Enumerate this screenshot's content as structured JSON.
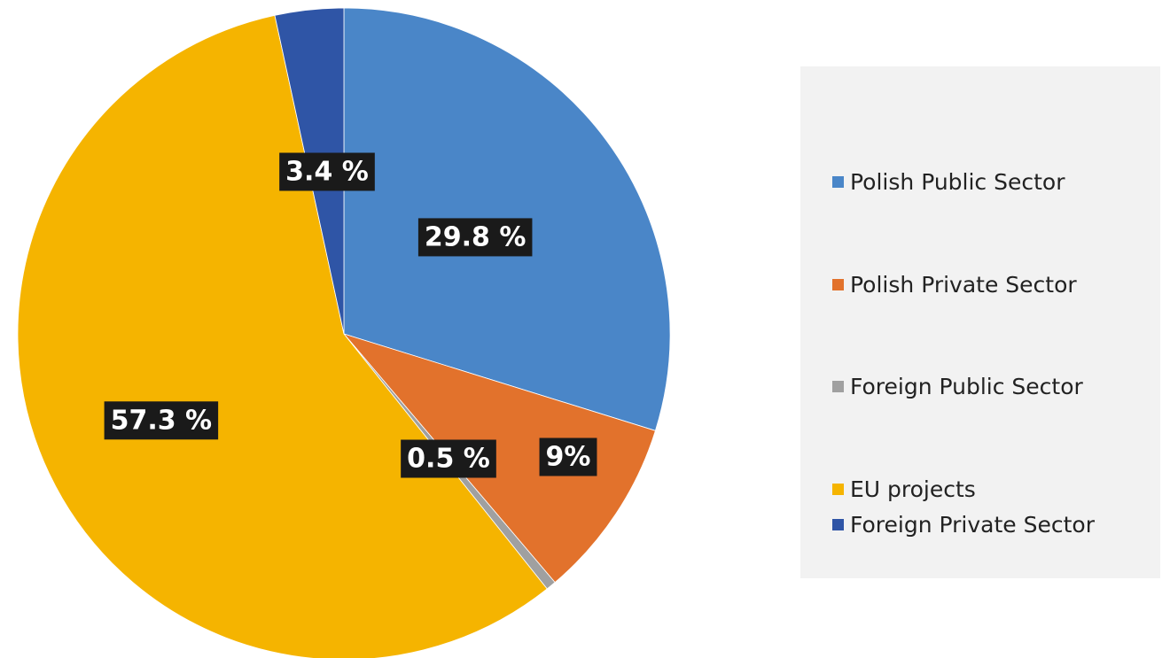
{
  "chart_data": {
    "type": "pie",
    "start_angle_deg": -90,
    "direction": "clockwise",
    "legend_position": "right",
    "slices": [
      {
        "name": "Polish Public Sector",
        "value": 29.8,
        "label": "29.8 %",
        "color": "#4a86c8"
      },
      {
        "name": "Polish Private Sector",
        "value": 9.0,
        "label": "9%",
        "color": "#e2722c"
      },
      {
        "name": "Foreign Public Sector",
        "value": 0.5,
        "label": "0.5 %",
        "color": "#a0a0a0"
      },
      {
        "name": "EU projects",
        "value": 57.3,
        "label": "57.3 %",
        "color": "#f5b400"
      },
      {
        "name": "Foreign Private Sector",
        "value": 3.4,
        "label": "3.4 %",
        "color": "#2f55a6"
      }
    ]
  }
}
